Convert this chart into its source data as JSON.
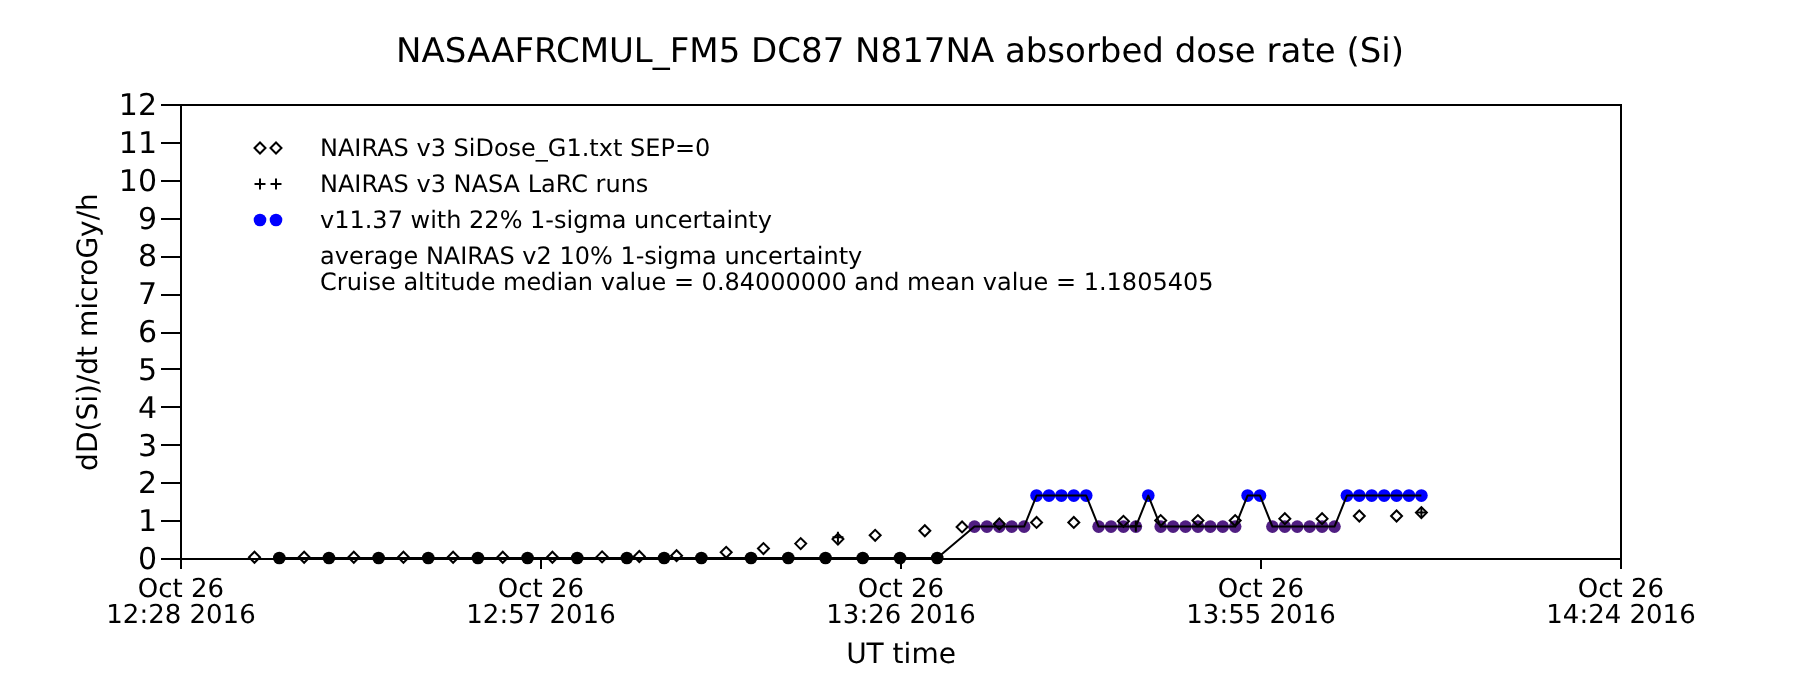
{
  "chart_data": {
    "type": "scatter",
    "title": "NASAAFRCMUL_FM5 DC87 N817NA absorbed dose rate (Si)",
    "xlabel": "UT time",
    "ylabel": "dD(Si)/dt microGy/h",
    "annotations": [
      "average NAIRAS v2 10% 1-sigma uncertainty",
      "Cruise altitude median value = 0.84000000 and mean value = 1.1805405"
    ],
    "xlim": [
      "2016-10-26T12:28",
      "2016-10-26T14:24"
    ],
    "xticks": [
      {
        "value": "2016-10-26T12:28",
        "label": "Oct 26\n12:28 2016"
      },
      {
        "value": "2016-10-26T12:57",
        "label": "Oct 26\n12:57 2016"
      },
      {
        "value": "2016-10-26T13:26",
        "label": "Oct 26\n13:26 2016"
      },
      {
        "value": "2016-10-26T13:55",
        "label": "Oct 26\n13:55 2016"
      },
      {
        "value": "2016-10-26T14:24",
        "label": "Oct 26\n14:24 2016"
      }
    ],
    "ylim": [
      0,
      12
    ],
    "yticks": [
      0,
      1,
      2,
      3,
      4,
      5,
      6,
      7,
      8,
      9,
      10,
      11,
      12
    ],
    "grid": false,
    "legend": "top left",
    "series": [
      {
        "type": "line",
        "color": "#000000",
        "x": [
          "2016-10-26T12:36",
          "2016-10-26T12:40",
          "2016-10-26T12:44",
          "2016-10-26T12:48",
          "2016-10-26T12:52",
          "2016-10-26T12:56",
          "2016-10-26T13:00",
          "2016-10-26T13:04",
          "2016-10-26T13:07",
          "2016-10-26T13:10",
          "2016-10-26T13:14",
          "2016-10-26T13:17",
          "2016-10-26T13:20",
          "2016-10-26T13:23",
          "2016-10-26T13:26",
          "2016-10-26T13:29",
          "2016-10-26T13:32",
          "2016-10-26T13:33",
          "2016-10-26T13:34",
          "2016-10-26T13:35",
          "2016-10-26T13:36",
          "2016-10-26T13:37",
          "2016-10-26T13:38",
          "2016-10-26T13:39",
          "2016-10-26T13:40",
          "2016-10-26T13:41",
          "2016-10-26T13:42",
          "2016-10-26T13:43",
          "2016-10-26T13:44",
          "2016-10-26T13:45",
          "2016-10-26T13:46",
          "2016-10-26T13:47",
          "2016-10-26T13:48",
          "2016-10-26T13:49",
          "2016-10-26T13:50",
          "2016-10-26T13:51",
          "2016-10-26T13:52",
          "2016-10-26T13:53",
          "2016-10-26T13:54",
          "2016-10-26T13:55",
          "2016-10-26T13:56",
          "2016-10-26T13:57",
          "2016-10-26T13:58",
          "2016-10-26T13:59",
          "2016-10-26T14:00",
          "2016-10-26T14:01",
          "2016-10-26T14:02",
          "2016-10-26T14:03",
          "2016-10-26T14:04",
          "2016-10-26T14:05",
          "2016-10-26T14:06",
          "2016-10-26T14:07",
          "2016-10-26T14:08"
        ],
        "values": [
          0,
          0,
          0,
          0,
          0,
          0,
          0,
          0,
          0,
          0,
          0,
          0,
          0,
          0,
          0,
          0,
          0.83,
          0.83,
          0.83,
          0.83,
          0.83,
          1.65,
          1.65,
          1.65,
          1.65,
          1.65,
          0.83,
          0.83,
          0.83,
          0.83,
          1.65,
          0.83,
          0.83,
          0.83,
          0.83,
          0.83,
          0.83,
          0.83,
          1.65,
          1.65,
          0.83,
          0.83,
          0.83,
          0.83,
          0.83,
          0.83,
          1.65,
          1.65,
          1.65,
          1.65,
          1.65,
          1.65,
          1.65
        ]
      },
      {
        "name": "NAIRAS v3 SiDose_G1.txt SEP=0",
        "marker": "diamond",
        "color": "#000000",
        "x": [
          "2016-10-26T12:34",
          "2016-10-26T12:38",
          "2016-10-26T12:42",
          "2016-10-26T12:46",
          "2016-10-26T12:50",
          "2016-10-26T12:54",
          "2016-10-26T12:58",
          "2016-10-26T13:02",
          "2016-10-26T13:05",
          "2016-10-26T13:08",
          "2016-10-26T13:12",
          "2016-10-26T13:15",
          "2016-10-26T13:18",
          "2016-10-26T13:21",
          "2016-10-26T13:24",
          "2016-10-26T13:28",
          "2016-10-26T13:31",
          "2016-10-26T13:34",
          "2016-10-26T13:37",
          "2016-10-26T13:40",
          "2016-10-26T13:44",
          "2016-10-26T13:47",
          "2016-10-26T13:50",
          "2016-10-26T13:53",
          "2016-10-26T13:57",
          "2016-10-26T14:00",
          "2016-10-26T14:03",
          "2016-10-26T14:06",
          "2016-10-26T14:08"
        ],
        "values": [
          0.02,
          0.02,
          0.02,
          0.02,
          0.02,
          0.02,
          0.02,
          0.03,
          0.04,
          0.06,
          0.15,
          0.25,
          0.38,
          0.5,
          0.6,
          0.72,
          0.82,
          0.9,
          0.94,
          0.94,
          0.97,
          0.99,
          0.99,
          0.99,
          1.04,
          1.04,
          1.11,
          1.11,
          1.2
        ]
      },
      {
        "name": "NAIRAS v3 NASA LaRC runs",
        "marker": "cross",
        "color": "#000000",
        "x": [
          "2016-10-26T13:21",
          "2016-10-26T13:45",
          "2016-10-26T14:08"
        ],
        "values": [
          0.55,
          0.84,
          1.2
        ]
      },
      {
        "name": "v11.37 with 22% 1-sigma uncertainty",
        "marker": "circle",
        "color": "#0000ff",
        "x": [
          "2016-10-26T12:36",
          "2016-10-26T12:40",
          "2016-10-26T12:44",
          "2016-10-26T12:48",
          "2016-10-26T12:52",
          "2016-10-26T12:56",
          "2016-10-26T13:00",
          "2016-10-26T13:04",
          "2016-10-26T13:07",
          "2016-10-26T13:10",
          "2016-10-26T13:14",
          "2016-10-26T13:17",
          "2016-10-26T13:20",
          "2016-10-26T13:23",
          "2016-10-26T13:26",
          "2016-10-26T13:29",
          "2016-10-26T13:32",
          "2016-10-26T13:33",
          "2016-10-26T13:34",
          "2016-10-26T13:35",
          "2016-10-26T13:36",
          "2016-10-26T13:37",
          "2016-10-26T13:38",
          "2016-10-26T13:39",
          "2016-10-26T13:40",
          "2016-10-26T13:41",
          "2016-10-26T13:42",
          "2016-10-26T13:43",
          "2016-10-26T13:44",
          "2016-10-26T13:45",
          "2016-10-26T13:46",
          "2016-10-26T13:47",
          "2016-10-26T13:48",
          "2016-10-26T13:49",
          "2016-10-26T13:50",
          "2016-10-26T13:51",
          "2016-10-26T13:52",
          "2016-10-26T13:53",
          "2016-10-26T13:54",
          "2016-10-26T13:55",
          "2016-10-26T13:56",
          "2016-10-26T13:57",
          "2016-10-26T13:58",
          "2016-10-26T13:59",
          "2016-10-26T14:00",
          "2016-10-26T14:01",
          "2016-10-26T14:02",
          "2016-10-26T14:03",
          "2016-10-26T14:04",
          "2016-10-26T14:05",
          "2016-10-26T14:06",
          "2016-10-26T14:07",
          "2016-10-26T14:08"
        ],
        "values": [
          0,
          0,
          0,
          0,
          0,
          0,
          0,
          0,
          0,
          0,
          0,
          0,
          0,
          0,
          0,
          0,
          0.83,
          0.83,
          0.83,
          0.83,
          0.83,
          1.65,
          1.65,
          1.65,
          1.65,
          1.65,
          0.83,
          0.83,
          0.83,
          0.83,
          1.65,
          0.83,
          0.83,
          0.83,
          0.83,
          0.83,
          0.83,
          0.83,
          1.65,
          1.65,
          0.83,
          0.83,
          0.83,
          0.83,
          0.83,
          0.83,
          1.65,
          1.65,
          1.65,
          1.65,
          1.65,
          1.65,
          1.65
        ],
        "colors": [
          "#000000",
          "#000000",
          "#000000",
          "#000000",
          "#000000",
          "#000000",
          "#000000",
          "#000000",
          "#000000",
          "#000000",
          "#000000",
          "#000000",
          "#000000",
          "#000000",
          "#000000",
          "#000000",
          "#501e82",
          "#501e82",
          "#501e82",
          "#501e82",
          "#501e82",
          "#0000ff",
          "#0000ff",
          "#0000ff",
          "#0000ff",
          "#0000ff",
          "#501e82",
          "#501e82",
          "#501e82",
          "#501e82",
          "#0000ff",
          "#501e82",
          "#501e82",
          "#501e82",
          "#501e82",
          "#501e82",
          "#501e82",
          "#501e82",
          "#0000ff",
          "#0000ff",
          "#501e82",
          "#501e82",
          "#501e82",
          "#501e82",
          "#501e82",
          "#501e82",
          "#0000ff",
          "#0000ff",
          "#0000ff",
          "#0000ff",
          "#0000ff",
          "#0000ff",
          "#0000ff"
        ]
      }
    ]
  }
}
